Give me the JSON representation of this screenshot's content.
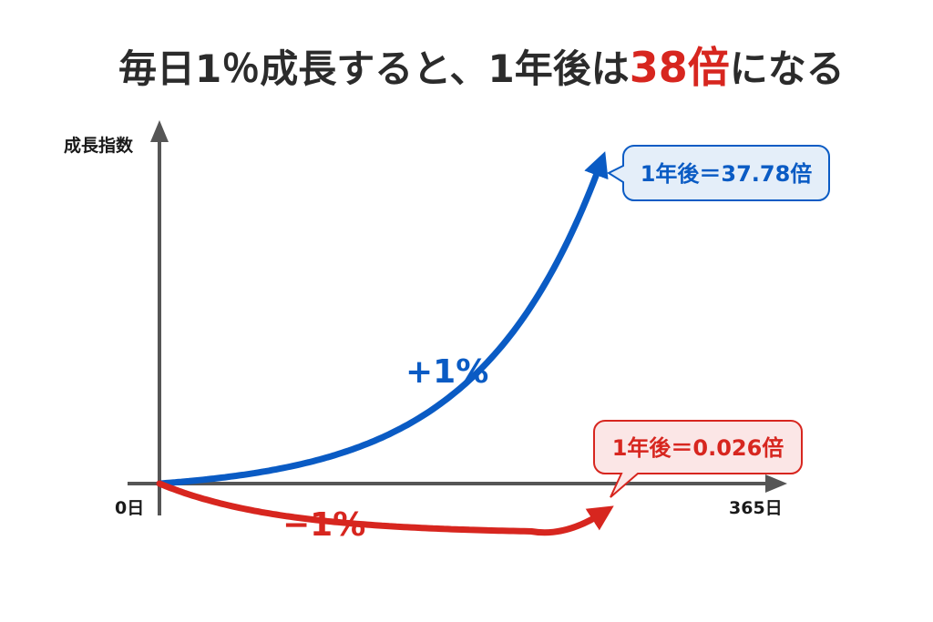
{
  "title": {
    "part1": "毎日1％成長すると、1年後は",
    "highlight": "38倍",
    "part2": "になる"
  },
  "colors": {
    "up": "#0a5bc4",
    "down": "#d7261f",
    "axis": "#555555",
    "up_callout_bg": "#e4eef9",
    "down_callout_bg": "#fbe6e6"
  },
  "chart_data": {
    "type": "line",
    "ylabel": "成長指数",
    "x_tick_start": "0日",
    "x_tick_end": "365日",
    "xlim": [
      0,
      365
    ],
    "series": [
      {
        "name": "+1%",
        "daily_rate": 0.01,
        "final_value": 37.78,
        "callout": "1年後＝37.78倍"
      },
      {
        "name": "−1%",
        "daily_rate": -0.01,
        "final_value": 0.026,
        "callout": "1年後＝0.026倍"
      }
    ]
  }
}
